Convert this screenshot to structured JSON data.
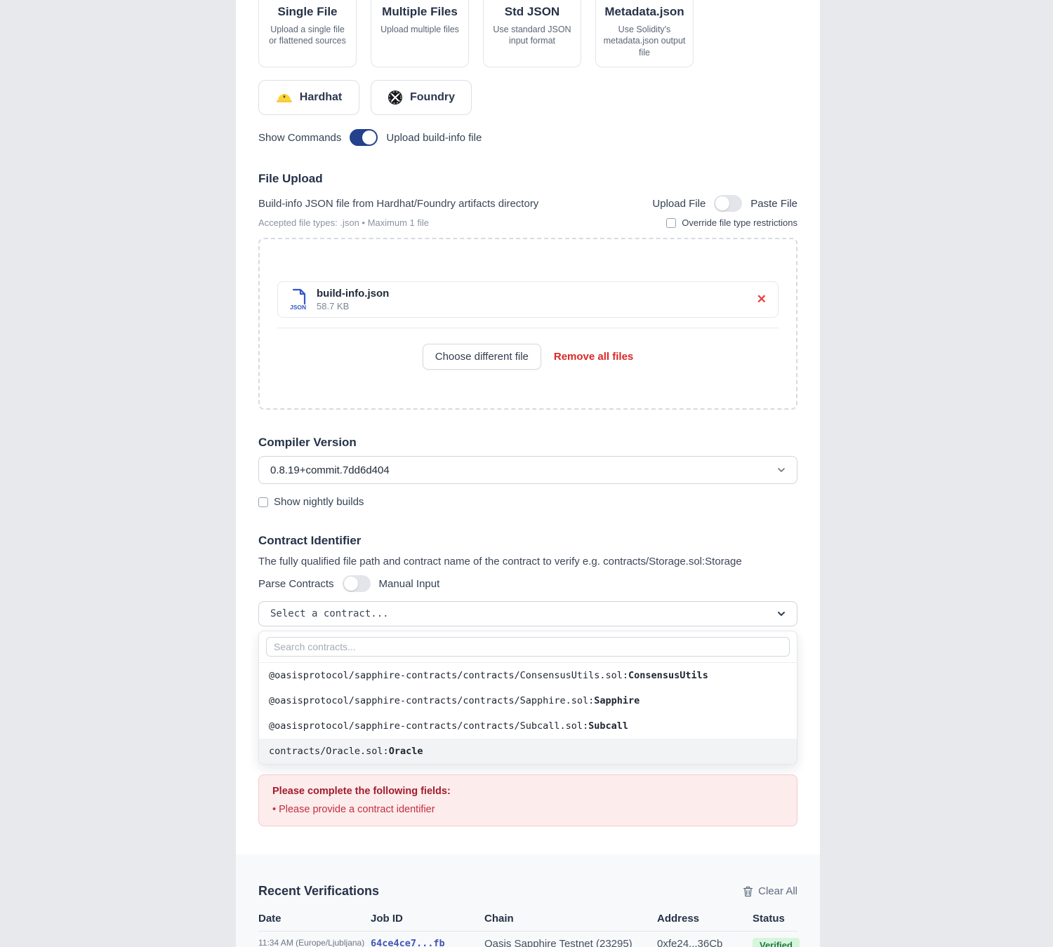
{
  "methods": {
    "cards": [
      {
        "title": "Single File",
        "description": "Upload a single file or flattened sources",
        "badge": false,
        "help": false
      },
      {
        "title": "Multiple Files",
        "description": "Upload multiple files",
        "badge": false,
        "help": false
      },
      {
        "title": "Std JSON",
        "description": "Use standard JSON input format",
        "badge": true,
        "help": false
      },
      {
        "title": "Metadata.json",
        "description": "Use Solidity's metadata.json output file",
        "badge": false,
        "help": true
      }
    ],
    "help_glyph": "?",
    "frameworks": [
      {
        "label": "Hardhat",
        "icon": "hardhat-icon"
      },
      {
        "label": "Foundry",
        "icon": "foundry-icon"
      }
    ],
    "commands_toggle": {
      "left": "Show Commands",
      "right": "Upload build-info file",
      "state": "on"
    }
  },
  "file_upload": {
    "title": "File Upload",
    "description": "Build-info JSON file from Hardhat/Foundry artifacts directory",
    "mode_toggle": {
      "left": "Upload File",
      "right": "Paste File",
      "state": "off"
    },
    "accepted": "Accepted file types: .json • Maximum 1 file",
    "override_label": "Override file type restrictions",
    "file": {
      "name": "build-info.json",
      "size": "58.7 KB",
      "type_label": "JSON",
      "remove_glyph": "✕"
    },
    "choose_button": "Choose different file",
    "remove_all_button": "Remove all files"
  },
  "compiler": {
    "title": "Compiler Version",
    "selected": "0.8.19+commit.7dd6d404",
    "nightly_label": "Show nightly builds"
  },
  "contract_identifier": {
    "title": "Contract Identifier",
    "description": "The fully qualified file path and contract name of the contract to verify e.g. contracts/Storage.sol:Storage",
    "mode_toggle": {
      "left": "Parse Contracts",
      "right": "Manual Input",
      "state": "off"
    },
    "select_placeholder": "Select a contract...",
    "search_placeholder": "Search contracts...",
    "options": [
      {
        "path": "@oasisprotocol/sapphire-contracts/contracts/ConsensusUtils.sol:",
        "name": "ConsensusUtils",
        "highlighted": false
      },
      {
        "path": "@oasisprotocol/sapphire-contracts/contracts/Sapphire.sol:",
        "name": "Sapphire",
        "highlighted": false
      },
      {
        "path": "@oasisprotocol/sapphire-contracts/contracts/Subcall.sol:",
        "name": "Subcall",
        "highlighted": false
      },
      {
        "path": "contracts/Oracle.sol:",
        "name": "Oracle",
        "highlighted": true
      }
    ]
  },
  "validation": {
    "title": "Please complete the following fields:",
    "errors": [
      "• Please provide a contract identifier"
    ]
  },
  "recent": {
    "title": "Recent Verifications",
    "clear_label": "Clear All",
    "columns": [
      "Date",
      "Job ID",
      "Chain",
      "Address",
      "Status"
    ],
    "rows": [
      {
        "date": "11:34 AM (Europe/Ljubljana)",
        "job_id": "64ce4ce7...fb",
        "chain": "Oasis Sapphire Testnet (23295)",
        "address": "0xfe24...36Cb",
        "status": "Verified"
      }
    ]
  },
  "colors": {
    "accent_blue": "#24418e",
    "danger_red": "#dc2626",
    "badge_green_bg": "#d5f5dd",
    "badge_green_text": "#1f7a3d",
    "error_bg": "#fdecec",
    "link_blue": "#4055b8"
  }
}
